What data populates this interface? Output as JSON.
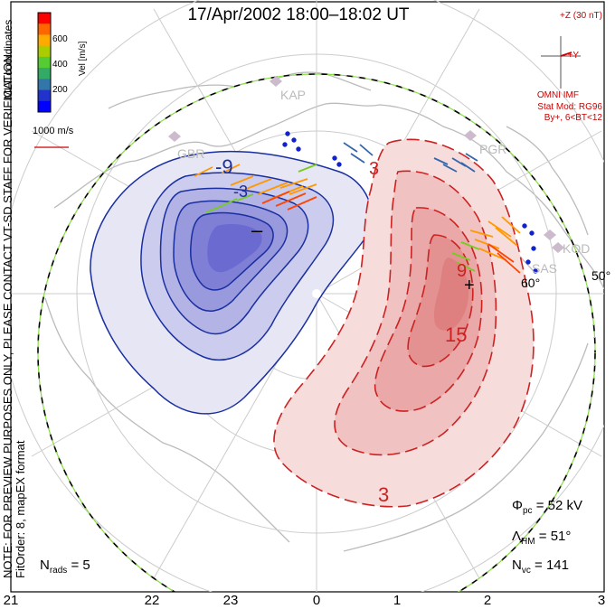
{
  "title": "17/Apr/2002 18:00–18:02 UT",
  "side_note": "NOTE: FOR PREVIEW PURPOSES ONLY, PLEASE CONTACT VT-SD STAFF FOR VERIFICATION.",
  "fit_order": "FitOrder: 8, mapEX format",
  "coordinates": "MLT coordinates",
  "velocity_legend": {
    "label": "Vel [m/s]",
    "ticks": [
      "600",
      "400",
      "200"
    ],
    "colors": [
      "#ff0000",
      "#ff6600",
      "#ffaa00",
      "#aacc00",
      "#55cc33",
      "#33aa66",
      "#3377aa",
      "#2233cc",
      "#0000ff"
    ]
  },
  "scale_label": "1000 m/s",
  "imf": {
    "scale": "+Z (30 nT)",
    "y_label": "+Y",
    "source": "OMNI IMF",
    "stat_model": "Stat Mod: RG96",
    "condition": "By+, 6<BT<12"
  },
  "stations": [
    "KAP",
    "GBR",
    "PGR",
    "KOD",
    "SAS"
  ],
  "latitude_labels": [
    "60°",
    "50°"
  ],
  "contours": {
    "negative_labels": [
      "-9",
      "-3"
    ],
    "positive_labels": [
      "3",
      "15",
      "9",
      "3"
    ],
    "min_marker": "–",
    "max_marker": "+"
  },
  "readouts": {
    "phi_pc": {
      "symbol": "Φ",
      "sub": "pc",
      "text": "= 52 kV"
    },
    "lambda_hm": {
      "symbol": "Λ",
      "sub": "HM",
      "text": "= 51°"
    },
    "n_vc": {
      "symbol": "N",
      "sub": "vc",
      "text": "= 141"
    },
    "n_rads": {
      "symbol": "N",
      "sub": "rads",
      "text": "= 5"
    }
  },
  "mlt_ticks": [
    "21",
    "22",
    "23",
    "0",
    "1",
    "2",
    "3"
  ]
}
